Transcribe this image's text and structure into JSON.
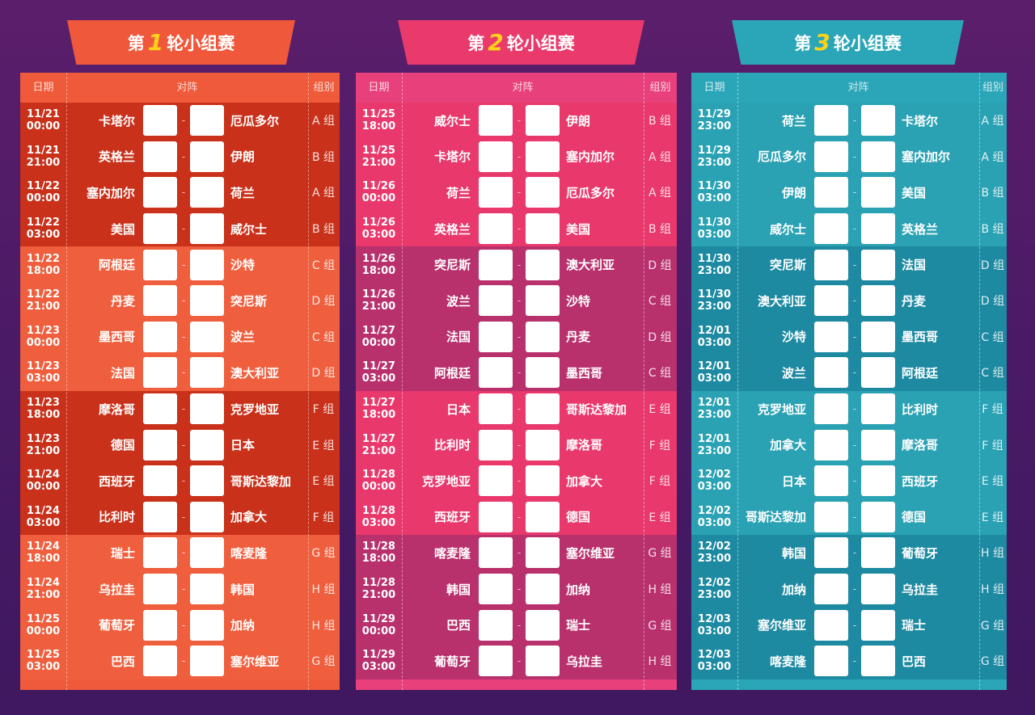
{
  "headers": {
    "date": "日期",
    "match": "对阵",
    "group": "组别"
  },
  "colors": {
    "round1": [
      "#c9311a",
      "#ef5f3e",
      "#ee5a3a"
    ],
    "round2": [
      "#e8386c",
      "#b8306c",
      "#e8407a"
    ],
    "round3": [
      "#2aa2b4",
      "#1d8aa2",
      "#2aa6b8"
    ],
    "number": "#ffd21a"
  },
  "rounds": [
    {
      "prefix": "第",
      "number": "1",
      "suffix": "轮小组赛",
      "matches": [
        [
          "11/21",
          "00:00",
          "卡塔尔",
          "厄瓜多尔",
          "A 组"
        ],
        [
          "11/21",
          "21:00",
          "英格兰",
          "伊朗",
          "B 组"
        ],
        [
          "11/22",
          "00:00",
          "塞内加尔",
          "荷兰",
          "A 组"
        ],
        [
          "11/22",
          "03:00",
          "美国",
          "威尔士",
          "B 组"
        ],
        [
          "11/22",
          "18:00",
          "阿根廷",
          "沙特",
          "C 组"
        ],
        [
          "11/22",
          "21:00",
          "丹麦",
          "突尼斯",
          "D 组"
        ],
        [
          "11/23",
          "00:00",
          "墨西哥",
          "波兰",
          "C 组"
        ],
        [
          "11/23",
          "03:00",
          "法国",
          "澳大利亚",
          "D 组"
        ],
        [
          "11/23",
          "18:00",
          "摩洛哥",
          "克罗地亚",
          "F 组"
        ],
        [
          "11/23",
          "21:00",
          "德国",
          "日本",
          "E 组"
        ],
        [
          "11/24",
          "00:00",
          "西班牙",
          "哥斯达黎加",
          "E 组"
        ],
        [
          "11/24",
          "03:00",
          "比利时",
          "加拿大",
          "F 组"
        ],
        [
          "11/24",
          "18:00",
          "瑞士",
          "喀麦隆",
          "G 组"
        ],
        [
          "11/24",
          "21:00",
          "乌拉圭",
          "韩国",
          "H 组"
        ],
        [
          "11/25",
          "00:00",
          "葡萄牙",
          "加纳",
          "H 组"
        ],
        [
          "11/25",
          "03:00",
          "巴西",
          "塞尔维亚",
          "G 组"
        ]
      ]
    },
    {
      "prefix": "第",
      "number": "2",
      "suffix": "轮小组赛",
      "matches": [
        [
          "11/25",
          "18:00",
          "威尔士",
          "伊朗",
          "B 组"
        ],
        [
          "11/25",
          "21:00",
          "卡塔尔",
          "塞内加尔",
          "A 组"
        ],
        [
          "11/26",
          "00:00",
          "荷兰",
          "厄瓜多尔",
          "A 组"
        ],
        [
          "11/26",
          "03:00",
          "英格兰",
          "美国",
          "B 组"
        ],
        [
          "11/26",
          "18:00",
          "突尼斯",
          "澳大利亚",
          "D 组"
        ],
        [
          "11/26",
          "21:00",
          "波兰",
          "沙特",
          "C 组"
        ],
        [
          "11/27",
          "00:00",
          "法国",
          "丹麦",
          "D 组"
        ],
        [
          "11/27",
          "03:00",
          "阿根廷",
          "墨西哥",
          "C 组"
        ],
        [
          "11/27",
          "18:00",
          "日本",
          "哥斯达黎加",
          "E 组"
        ],
        [
          "11/27",
          "21:00",
          "比利时",
          "摩洛哥",
          "F 组"
        ],
        [
          "11/28",
          "00:00",
          "克罗地亚",
          "加拿大",
          "F 组"
        ],
        [
          "11/28",
          "03:00",
          "西班牙",
          "德国",
          "E 组"
        ],
        [
          "11/28",
          "18:00",
          "喀麦隆",
          "塞尔维亚",
          "G 组"
        ],
        [
          "11/28",
          "21:00",
          "韩国",
          "加纳",
          "H 组"
        ],
        [
          "11/29",
          "00:00",
          "巴西",
          "瑞士",
          "G 组"
        ],
        [
          "11/29",
          "03:00",
          "葡萄牙",
          "乌拉圭",
          "H 组"
        ]
      ]
    },
    {
      "prefix": "第",
      "number": "3",
      "suffix": "轮小组赛",
      "matches": [
        [
          "11/29",
          "23:00",
          "荷兰",
          "卡塔尔",
          "A 组"
        ],
        [
          "11/29",
          "23:00",
          "厄瓜多尔",
          "塞内加尔",
          "A 组"
        ],
        [
          "11/30",
          "03:00",
          "伊朗",
          "美国",
          "B 组"
        ],
        [
          "11/30",
          "03:00",
          "威尔士",
          "英格兰",
          "B 组"
        ],
        [
          "11/30",
          "23:00",
          "突尼斯",
          "法国",
          "D 组"
        ],
        [
          "11/30",
          "23:00",
          "澳大利亚",
          "丹麦",
          "D 组"
        ],
        [
          "12/01",
          "03:00",
          "沙特",
          "墨西哥",
          "C 组"
        ],
        [
          "12/01",
          "03:00",
          "波兰",
          "阿根廷",
          "C 组"
        ],
        [
          "12/01",
          "23:00",
          "克罗地亚",
          "比利时",
          "F 组"
        ],
        [
          "12/01",
          "23:00",
          "加拿大",
          "摩洛哥",
          "F 组"
        ],
        [
          "12/02",
          "03:00",
          "日本",
          "西班牙",
          "E 组"
        ],
        [
          "12/02",
          "03:00",
          "哥斯达黎加",
          "德国",
          "E 组"
        ],
        [
          "12/02",
          "23:00",
          "韩国",
          "葡萄牙",
          "H 组"
        ],
        [
          "12/02",
          "23:00",
          "加纳",
          "乌拉圭",
          "H 组"
        ],
        [
          "12/03",
          "03:00",
          "塞尔维亚",
          "瑞士",
          "G 组"
        ],
        [
          "12/03",
          "03:00",
          "喀麦隆",
          "巴西",
          "G 组"
        ]
      ]
    }
  ]
}
